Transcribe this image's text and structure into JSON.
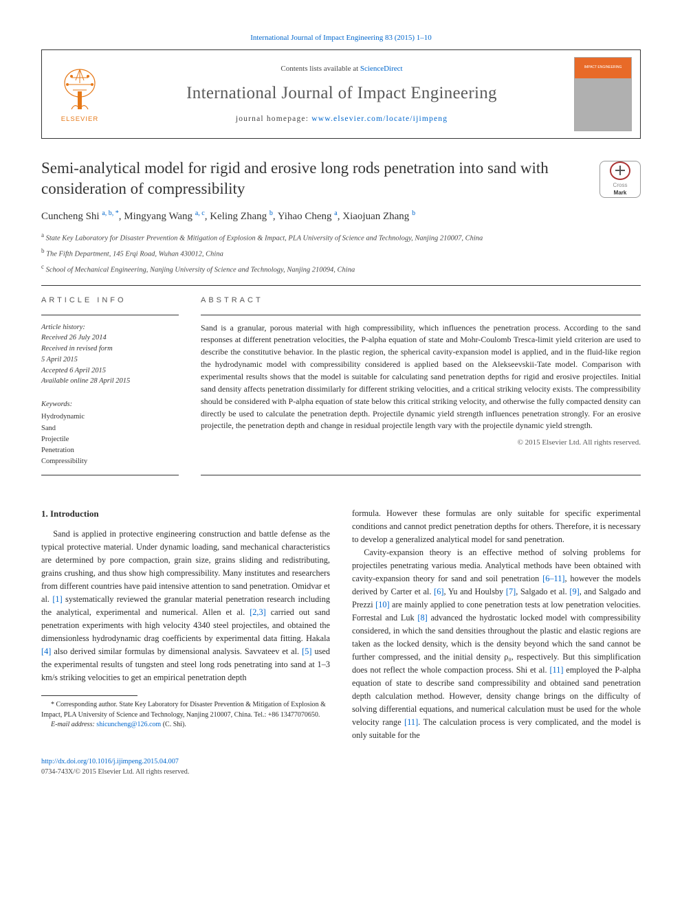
{
  "top_link": {
    "text": "International Journal of Impact Engineering 83 (2015) 1–10",
    "href": "#"
  },
  "header": {
    "contents": {
      "prefix": "Contents lists available at ",
      "link_text": "ScienceDirect",
      "href": "#"
    },
    "journal_title": "International Journal of Impact Engineering",
    "home": {
      "prefix": "journal homepage: ",
      "link_text": "www.elsevier.com/locate/ijimpeng",
      "href": "#"
    },
    "elsevier_word": "ELSEVIER",
    "cover_text": "IMPACT ENGINEERING"
  },
  "crossmark": {
    "line1": "Cross",
    "line2": "Mark"
  },
  "article": {
    "title": "Semi-analytical model for rigid and erosive long rods penetration into sand with consideration of compressibility",
    "authors_html": "Cuncheng Shi <sup><a href='#'>a, b, *</a></sup>, Mingyang Wang <sup><a href='#'>a, c</a></sup>, Keling Zhang <sup><a href='#'>b</a></sup>, Yihao Cheng <sup><a href='#'>a</a></sup>, Xiaojuan Zhang <sup><a href='#'>b</a></sup>",
    "affiliations": [
      {
        "sup": "a",
        "text": "State Key Laboratory for Disaster Prevention & Mitigation of Explosion & Impact, PLA University of Science and Technology, Nanjing 210007, China"
      },
      {
        "sup": "b",
        "text": "The Fifth Department, 145 Erqi Road, Wuhan 430012, China"
      },
      {
        "sup": "c",
        "text": "School of Mechanical Engineering, Nanjing University of Science and Technology, Nanjing 210094, China"
      }
    ]
  },
  "info": {
    "head": "ARTICLE INFO",
    "history_label": "Article history:",
    "history": [
      "Received 26 July 2014",
      "Received in revised form",
      "5 April 2015",
      "Accepted 6 April 2015",
      "Available online 28 April 2015"
    ],
    "kw_label": "Keywords:",
    "keywords": [
      "Hydrodynamic",
      "Sand",
      "Projectile",
      "Penetration",
      "Compressibility"
    ]
  },
  "abstract": {
    "head": "ABSTRACT",
    "text": "Sand is a granular, porous material with high compressibility, which influences the penetration process. According to the sand responses at different penetration velocities, the P-alpha equation of state and Mohr-Coulomb Tresca-limit yield criterion are used to describe the constitutive behavior. In the plastic region, the spherical cavity-expansion model is applied, and in the fluid-like region the hydrodynamic model with compressibility considered is applied based on the Alekseevskii-Tate model. Comparison with experimental results shows that the model is suitable for calculating sand penetration depths for rigid and erosive projectiles. Initial sand density affects penetration dissimilarly for different striking velocities, and a critical striking velocity exists. The compressibility should be considered with P-alpha equation of state below this critical striking velocity, and otherwise the fully compacted density can directly be used to calculate the penetration depth. Projectile dynamic yield strength influences penetration strongly. For an erosive projectile, the penetration depth and change in residual projectile length vary with the projectile dynamic yield strength.",
    "copyright": "© 2015 Elsevier Ltd. All rights reserved."
  },
  "body": {
    "intro_head": "1. Introduction",
    "p1_a": "Sand is applied in protective engineering construction and battle defense as the typical protective material. Under dynamic loading, sand mechanical characteristics are determined by pore compaction, grain size, grains sliding and redistributing, grains crushing, and thus show high compressibility. Many institutes and researchers from different countries have paid intensive attention to sand penetration. Omidvar et al. ",
    "ref1": "[1]",
    "p1_b": " systematically reviewed the granular material penetration research including the analytical, experimental and numerical. Allen et al. ",
    "ref23": "[2,3]",
    "p1_c": " carried out sand penetration experiments with high velocity 4340 steel projectiles, and obtained the dimensionless hydrodynamic drag coefficients by experimental data fitting. Hakala ",
    "ref4": "[4]",
    "p1_d": " also derived similar formulas by dimensional analysis. Savvateev et al. ",
    "ref5": "[5]",
    "p1_e": " used the experimental results of tungsten and steel long rods penetrating into sand at 1–3 km/s striking velocities to get an empirical penetration depth ",
    "p2_a": "formula. However these formulas are only suitable for specific experimental conditions and cannot predict penetration depths for others. Therefore, it is necessary to develop a generalized analytical model for sand penetration.",
    "p3_a": "Cavity-expansion theory is an effective method of solving problems for projectiles penetrating various media. Analytical methods have been obtained with cavity-expansion theory for sand and soil penetration ",
    "ref611": "[6–11]",
    "p3_b": ", however the models derived by Carter et al. ",
    "ref6": "[6]",
    "p3_c": ", Yu and Houlsby ",
    "ref7": "[7]",
    "p3_d": ", Salgado et al. ",
    "ref9": "[9]",
    "p3_e": ", and Salgado and Prezzi ",
    "ref10": "[10]",
    "p3_f": " are mainly applied to cone penetration tests at low penetration velocities. Forrestal and Luk ",
    "ref8": "[8]",
    "p3_g": " advanced the hydrostatic locked model with compressibility considered, in which the sand densities throughout the plastic and elastic regions are taken as the locked density, which is the density beyond which the sand cannot be further compressed, and the initial density ρ₀, respectively. But this simplification does not reflect the whole compaction process. Shi et al. ",
    "ref11": "[11]",
    "p3_h": " employed the P-alpha equation of state to describe sand compressibility and obtained sand penetration depth calculation method. However, density change brings on the difficulty of solving differential equations, and numerical calculation must be used for the whole velocity range ",
    "ref11b": "[11]",
    "p3_i": ". The calculation process is very complicated, and the model is only suitable for the"
  },
  "footnotes": {
    "corr_label": "* Corresponding author. State Key Laboratory for Disaster Prevention & Mitigation of Explosion & Impact, PLA University of Science and Technology, Nanjing 210007, China. Tel.: +86 13477070650.",
    "email_label": "E-mail address: ",
    "email": "shicuncheng@126.com",
    "email_tail": " (C. Shi)."
  },
  "doi": {
    "link": "http://dx.doi.org/10.1016/j.ijimpeng.2015.04.007",
    "line2": "0734-743X/© 2015 Elsevier Ltd. All rights reserved."
  },
  "colors": {
    "link": "#0066cc",
    "elsevier_orange": "#e67817",
    "cover_orange": "#e86a28",
    "rule": "#333333"
  }
}
